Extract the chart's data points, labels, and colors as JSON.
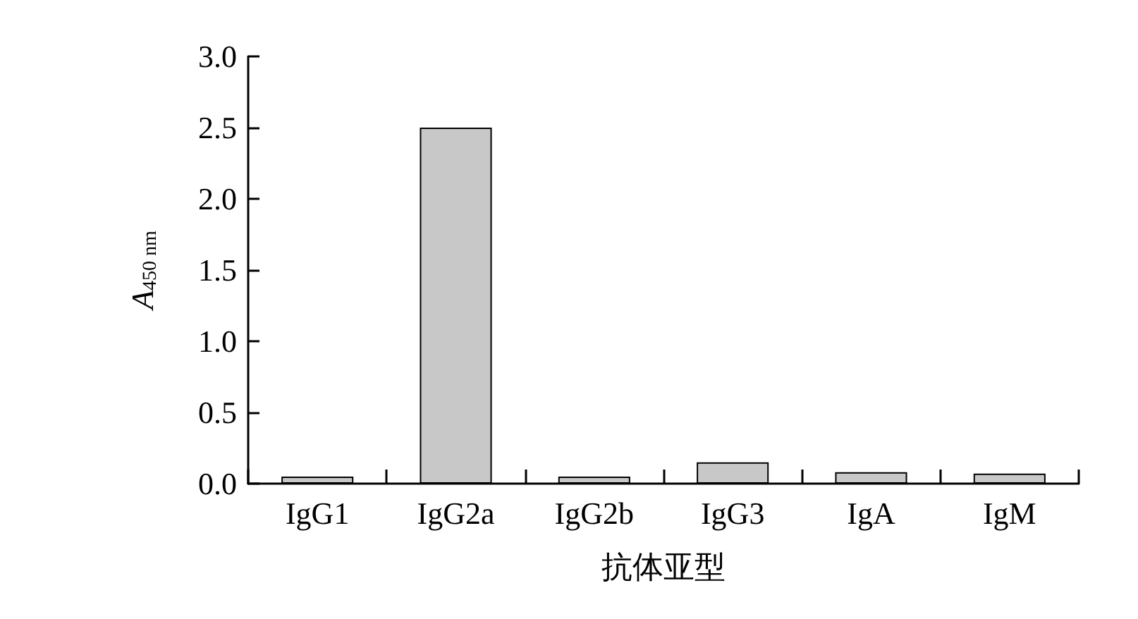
{
  "chart_data": {
    "type": "bar",
    "xlabel": "抗体亚型",
    "ylabel": "A$_{450 nm}$",
    "categories": [
      "IgG1",
      "IgG2a",
      "IgG2b",
      "IgG3",
      "IgA",
      "IgM"
    ],
    "values": [
      0.05,
      2.5,
      0.05,
      0.15,
      0.08,
      0.07
    ],
    "color": "#c8c8c8",
    "ylim": [
      0,
      3
    ],
    "yticks": [
      {
        "value": 0,
        "label": "0.0"
      },
      0.5,
      {
        "value": 1,
        "label": "1.0"
      },
      1.5,
      {
        "value": 2,
        "label": "2.0"
      },
      2.5,
      {
        "value": 3,
        "label": "3.0"
      }
    ],
    "grid": false
  }
}
